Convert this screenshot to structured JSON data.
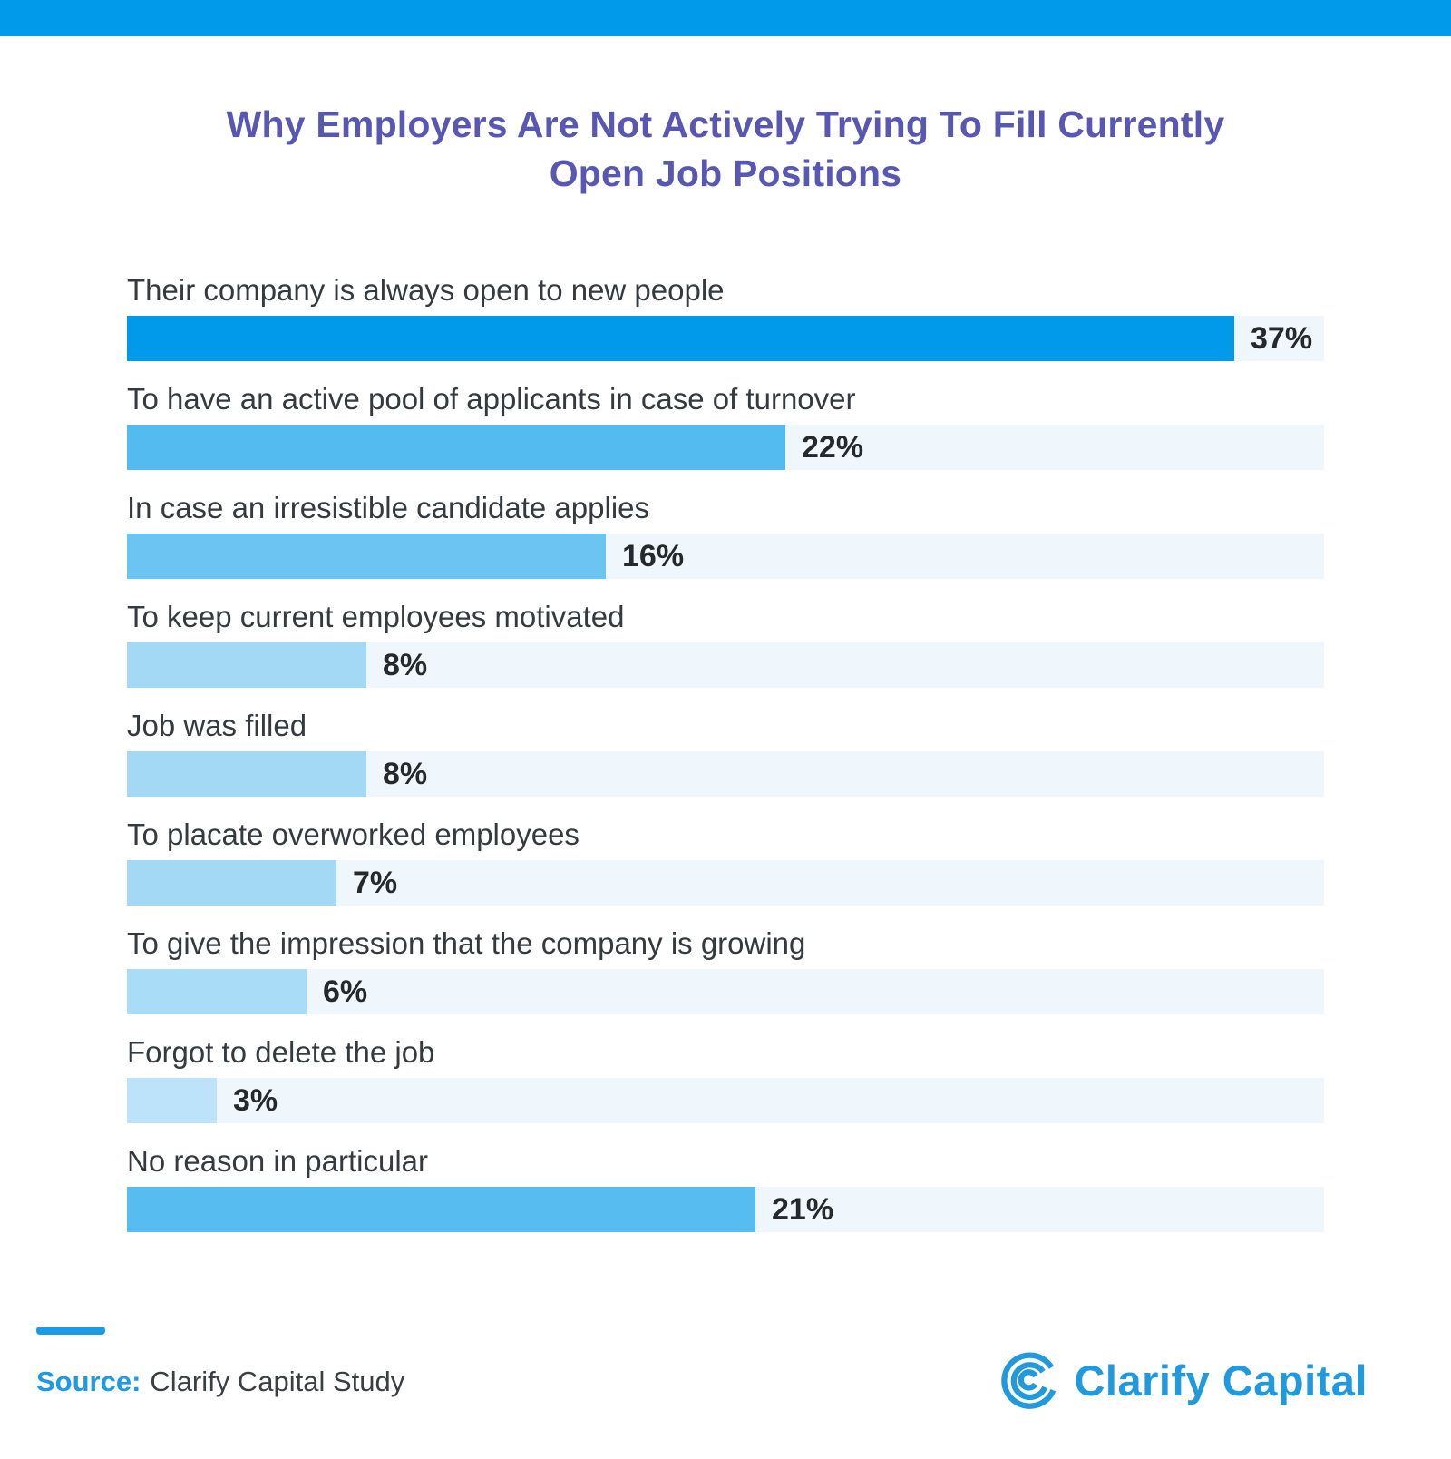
{
  "header": {
    "title_lines": [
      "Why Employers Are Not Actively Trying To Fill Currently",
      "Open Job Positions"
    ]
  },
  "chart_data": {
    "type": "bar",
    "orientation": "horizontal",
    "title": "Why Employers Are Not Actively Trying To Fill Currently Open Job Positions",
    "categories": [
      "Their company is always open to new people",
      "To have an active pool of applicants in case of turnover",
      "In case an irresistible candidate applies",
      "To keep current employees motivated",
      "Job was filled",
      "To placate overworked employees",
      "To give the impression that the company is growing",
      "Forgot to delete the job",
      "No reason in particular"
    ],
    "values": [
      37,
      22,
      16,
      8,
      8,
      7,
      6,
      3,
      21
    ],
    "value_suffix": "%",
    "xlim": [
      0,
      40
    ],
    "grid": false,
    "legend": "none",
    "bar_colors": [
      "#0199E9",
      "#54BBF0",
      "#6BC4F1",
      "#A4D9F6",
      "#A4D9F6",
      "#A4D9F6",
      "#A9DCF7",
      "#BCE3F9",
      "#57BCF0"
    ],
    "track_color": "#EFF7FC"
  },
  "footer": {
    "source_label": "Source:",
    "source_text": "Clarify Capital Study",
    "logo_text": "Clarify Capital"
  },
  "colors": {
    "accent": "#0199E9",
    "title": "#5857B4",
    "label": "#333B41",
    "value": "#26292C",
    "source_accent": "#1B9BE6",
    "logo": "#2199DD"
  }
}
